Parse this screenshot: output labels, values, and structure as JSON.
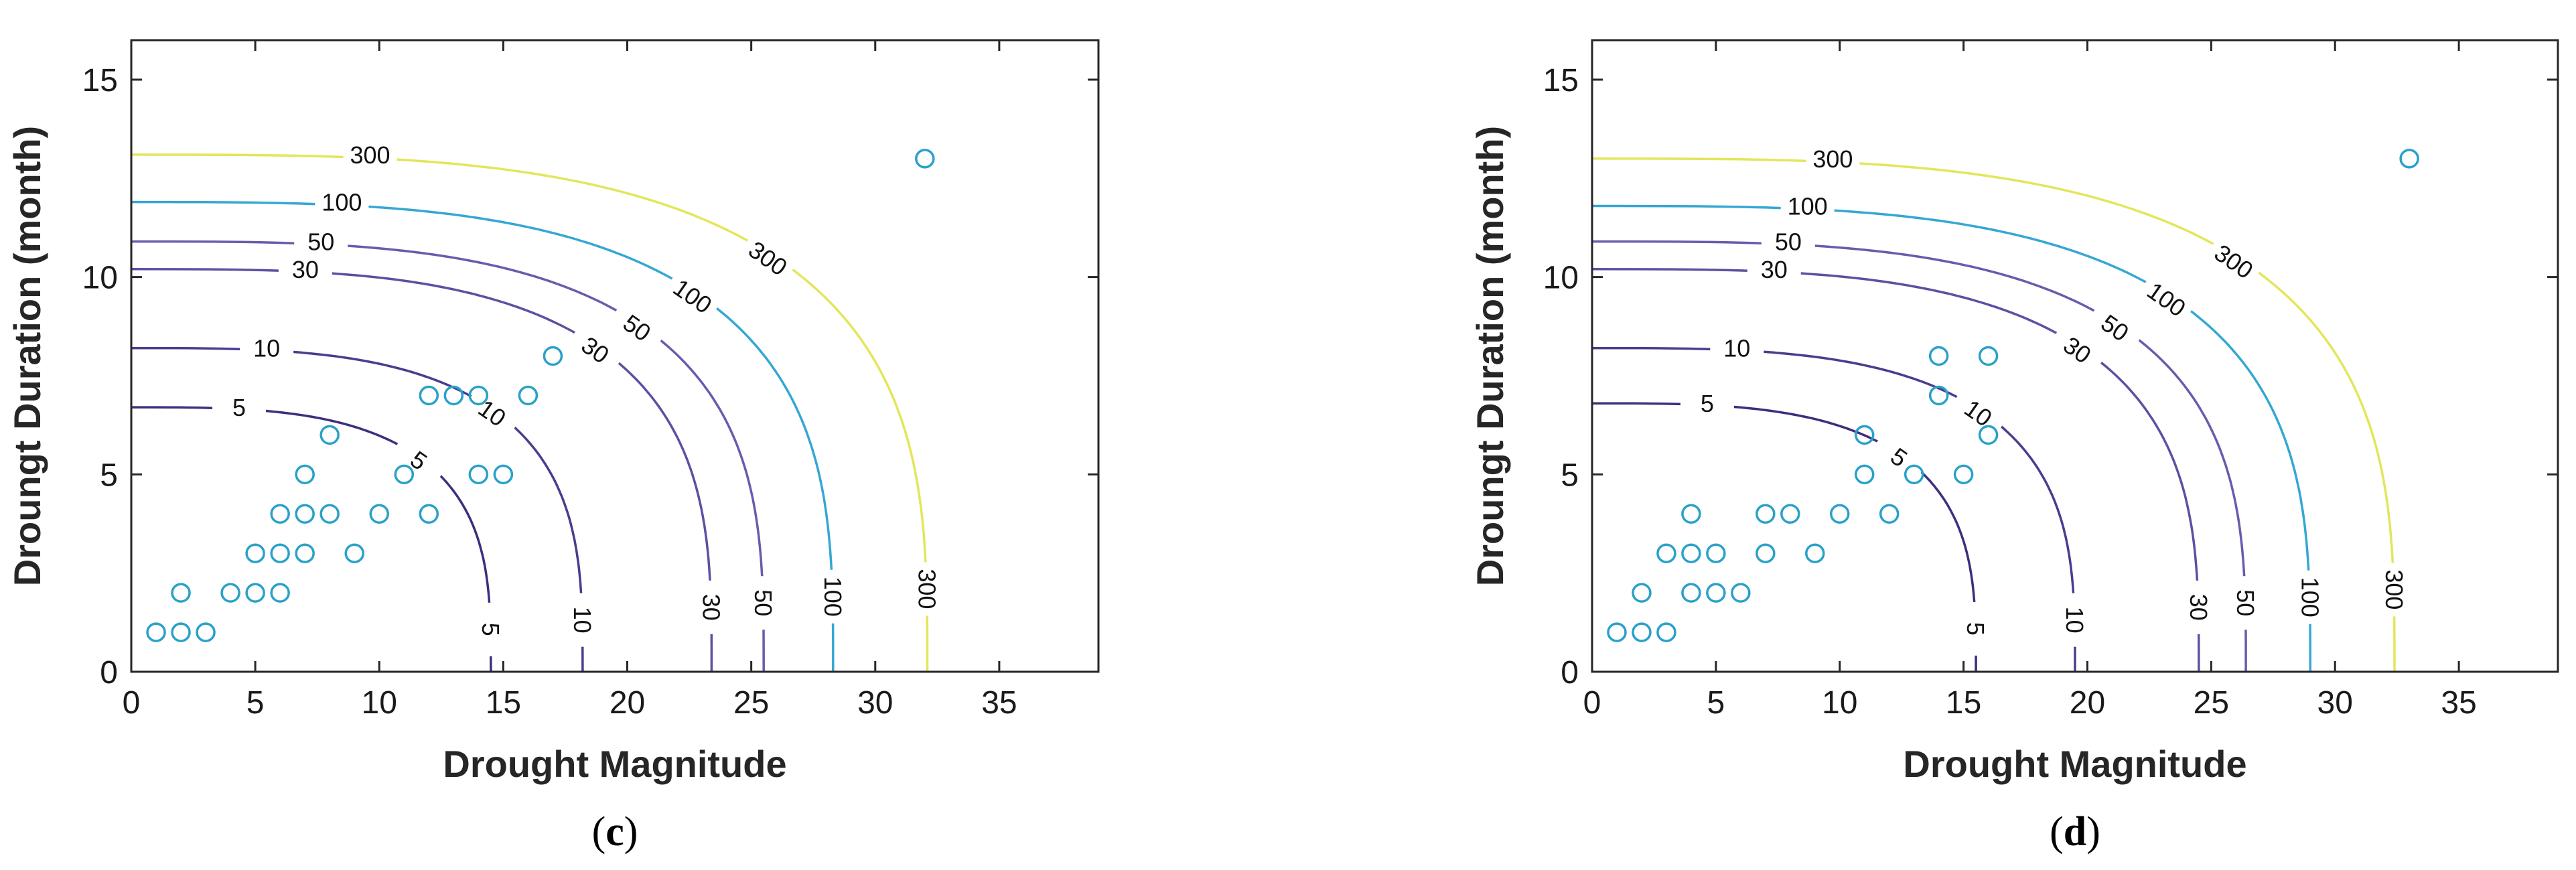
{
  "chart_data": [
    {
      "type": "scatter",
      "panel_caption": {
        "open": "(",
        "letter": "c",
        "close": ")"
      },
      "xlabel": "Drought Magnitude",
      "ylabel": "Droungt Duration (month)",
      "xlim": [
        0,
        39
      ],
      "ylim": [
        0,
        16
      ],
      "xticks": [
        "0",
        "5",
        "10",
        "15",
        "20",
        "25",
        "30",
        "35"
      ],
      "yticks": [
        "0",
        "5",
        "10",
        "15"
      ],
      "grid": false,
      "points": [
        [
          1,
          1
        ],
        [
          2,
          1
        ],
        [
          3,
          1
        ],
        [
          2,
          2
        ],
        [
          4,
          2
        ],
        [
          5,
          2
        ],
        [
          6,
          2
        ],
        [
          5,
          3
        ],
        [
          6,
          3
        ],
        [
          7,
          3
        ],
        [
          9,
          3
        ],
        [
          6,
          4
        ],
        [
          7,
          4
        ],
        [
          8,
          4
        ],
        [
          10,
          4
        ],
        [
          12,
          4
        ],
        [
          7,
          5
        ],
        [
          11,
          5
        ],
        [
          14,
          5
        ],
        [
          15,
          5
        ],
        [
          8,
          6
        ],
        [
          12,
          7
        ],
        [
          13,
          7
        ],
        [
          14,
          7
        ],
        [
          16,
          7
        ],
        [
          17,
          8
        ],
        [
          32,
          13
        ]
      ],
      "contours": [
        {
          "label": "5",
          "color": "#3d2e7e",
          "magnitude": 14.5,
          "duration": 6.7
        },
        {
          "label": "10",
          "color": "#4a3c8f",
          "magnitude": 18.2,
          "duration": 8.2
        },
        {
          "label": "30",
          "color": "#5e4fa2",
          "magnitude": 23.4,
          "duration": 10.2
        },
        {
          "label": "50",
          "color": "#6a5bad",
          "magnitude": 25.5,
          "duration": 10.9
        },
        {
          "label": "100",
          "color": "#35a7d3",
          "magnitude": 28.3,
          "duration": 11.9
        },
        {
          "label": "300",
          "color": "#e3e65a",
          "magnitude": 32.1,
          "duration": 13.1
        }
      ]
    },
    {
      "type": "scatter",
      "panel_caption": {
        "open": "(",
        "letter": "d",
        "close": ")"
      },
      "xlabel": "Drought Magnitude",
      "ylabel": "Droungt Duration (month)",
      "xlim": [
        0,
        39
      ],
      "ylim": [
        0,
        16
      ],
      "xticks": [
        "0",
        "5",
        "10",
        "15",
        "20",
        "25",
        "30",
        "35"
      ],
      "yticks": [
        "0",
        "5",
        "10",
        "15"
      ],
      "grid": false,
      "points": [
        [
          1,
          1
        ],
        [
          2,
          1
        ],
        [
          3,
          1
        ],
        [
          2,
          2
        ],
        [
          4,
          2
        ],
        [
          5,
          2
        ],
        [
          6,
          2
        ],
        [
          3,
          3
        ],
        [
          4,
          3
        ],
        [
          5,
          3
        ],
        [
          7,
          3
        ],
        [
          9,
          3
        ],
        [
          4,
          4
        ],
        [
          7,
          4
        ],
        [
          8,
          4
        ],
        [
          10,
          4
        ],
        [
          12,
          4
        ],
        [
          11,
          5
        ],
        [
          13,
          5
        ],
        [
          15,
          5
        ],
        [
          11,
          6
        ],
        [
          16,
          6
        ],
        [
          14,
          7
        ],
        [
          14,
          8
        ],
        [
          16,
          8
        ],
        [
          33,
          13
        ]
      ],
      "contours": [
        {
          "label": "5",
          "color": "#3d2e7e",
          "magnitude": 15.5,
          "duration": 6.8
        },
        {
          "label": "10",
          "color": "#4a3c8f",
          "magnitude": 19.5,
          "duration": 8.2
        },
        {
          "label": "30",
          "color": "#5e4fa2",
          "magnitude": 24.5,
          "duration": 10.2
        },
        {
          "label": "50",
          "color": "#6a5bad",
          "magnitude": 26.4,
          "duration": 10.9
        },
        {
          "label": "100",
          "color": "#35a7d3",
          "magnitude": 29.0,
          "duration": 11.8
        },
        {
          "label": "300",
          "color": "#e3e65a",
          "magnitude": 32.4,
          "duration": 13.0
        }
      ]
    }
  ]
}
